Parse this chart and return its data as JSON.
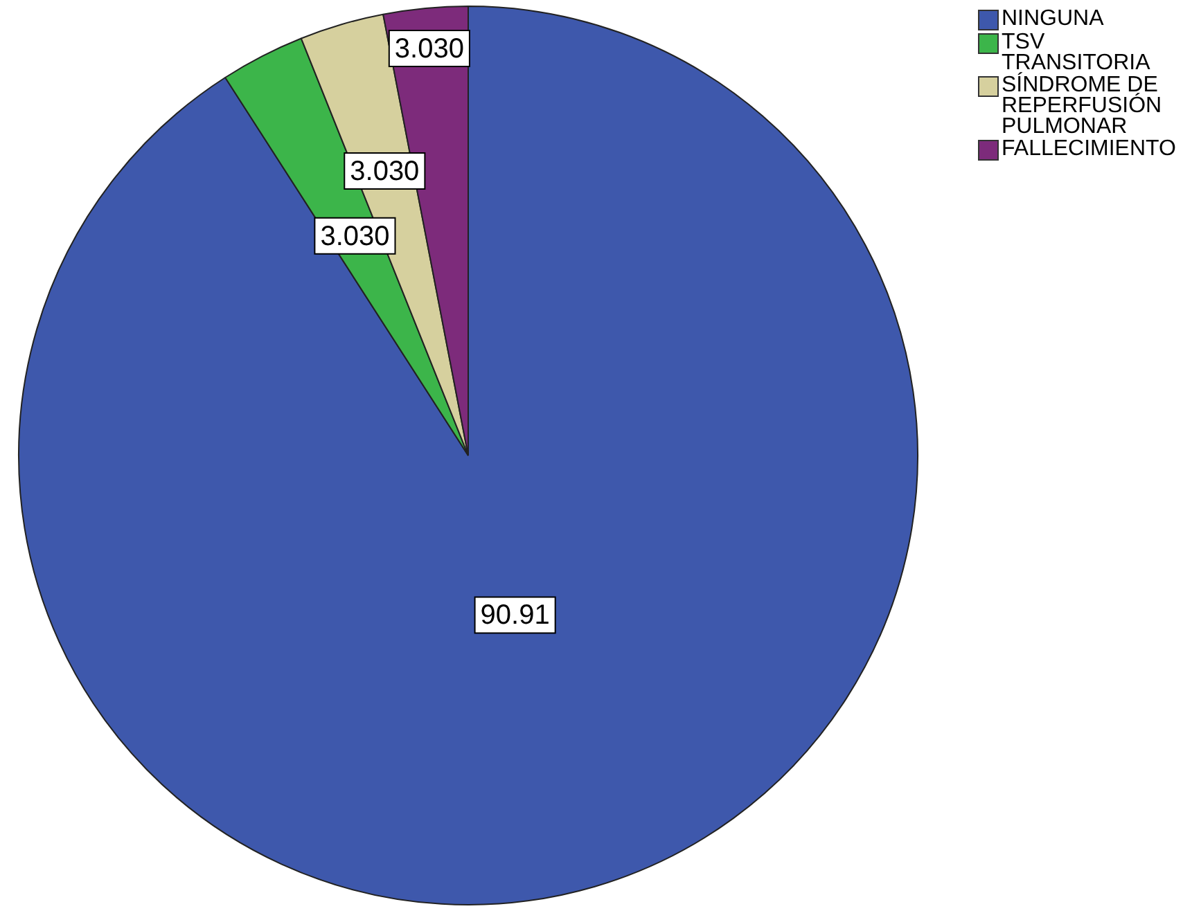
{
  "chart_data": {
    "type": "pie",
    "categories": [
      "NINGUNA",
      "TSV TRANSITORIA",
      "SÍNDROME DE REPERFUSIÓN PULMONAR",
      "FALLECIMIENTO"
    ],
    "values": [
      90.91,
      3.03,
      3.03,
      3.03
    ],
    "value_labels": [
      "90.91",
      "3.030",
      "3.030",
      "3.030"
    ],
    "colors": [
      "#3e58ac",
      "#3cb54a",
      "#d6d09e",
      "#7d2b7b"
    ],
    "legend": "top right"
  }
}
